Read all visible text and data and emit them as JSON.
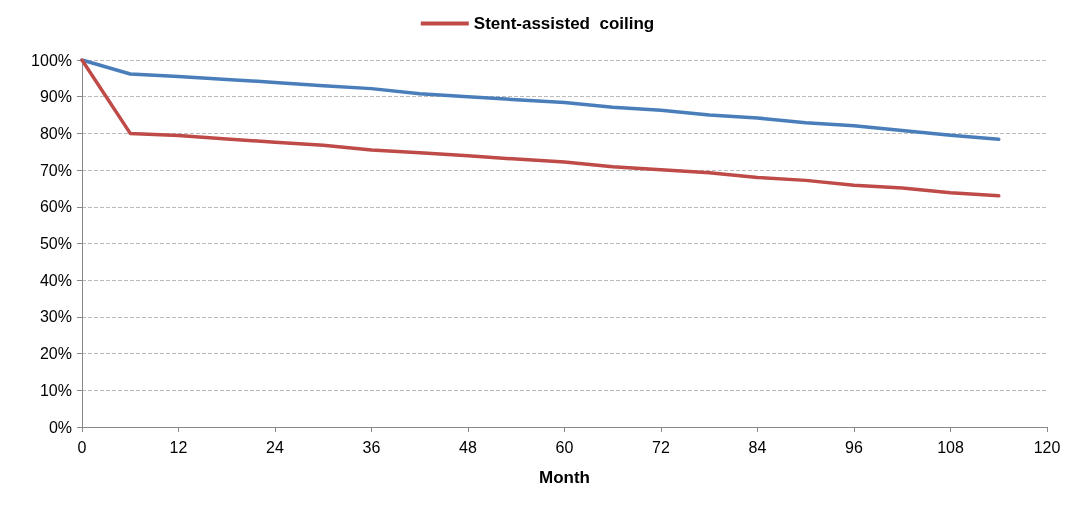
{
  "chart_data": {
    "type": "line",
    "xlabel": "Month",
    "legend": "top",
    "grid": "y",
    "marker": "none",
    "line_style": "solid",
    "xlim": [
      0,
      120
    ],
    "xticks": [
      0,
      12,
      24,
      36,
      48,
      60,
      72,
      84,
      96,
      108,
      120
    ],
    "ylim": [
      0,
      100
    ],
    "yticks": [
      {
        "value": 0,
        "label": "0%"
      },
      {
        "value": 10,
        "label": "10%"
      },
      {
        "value": 20,
        "label": "20%"
      },
      {
        "value": 30,
        "label": "30%"
      },
      {
        "value": 40,
        "label": "40%"
      },
      {
        "value": 50,
        "label": "50%"
      },
      {
        "value": 60,
        "label": "60%"
      },
      {
        "value": 70,
        "label": "70%"
      },
      {
        "value": 80,
        "label": "80%"
      },
      {
        "value": 90,
        "label": "90%"
      },
      {
        "value": 100,
        "label": "100%"
      }
    ],
    "series": [
      {
        "color": "#4a7ebb",
        "x": [
          0,
          6,
          12,
          18,
          24,
          30,
          36,
          42,
          48,
          54,
          60,
          66,
          72,
          78,
          84,
          90,
          96,
          102,
          108,
          114
        ],
        "values": [
          100,
          96.2,
          95.5,
          94.7,
          93.9,
          93,
          92.2,
          90.8,
          90,
          89.2,
          88.4,
          87.1,
          86.3,
          85,
          84.2,
          82.9,
          82.1,
          80.8,
          79.5,
          78.4
        ]
      },
      {
        "name": "Stent-assisted  coiling",
        "color": "#be4b48",
        "x": [
          0,
          6,
          12,
          18,
          24,
          30,
          36,
          42,
          48,
          54,
          60,
          66,
          72,
          78,
          84,
          90,
          96,
          102,
          108,
          114
        ],
        "values": [
          100,
          80,
          79.4,
          78.5,
          77.6,
          76.8,
          75.5,
          74.7,
          73.9,
          73,
          72.2,
          70.9,
          70.1,
          69.3,
          68,
          67.2,
          65.9,
          65.1,
          63.8,
          63
        ]
      }
    ]
  }
}
